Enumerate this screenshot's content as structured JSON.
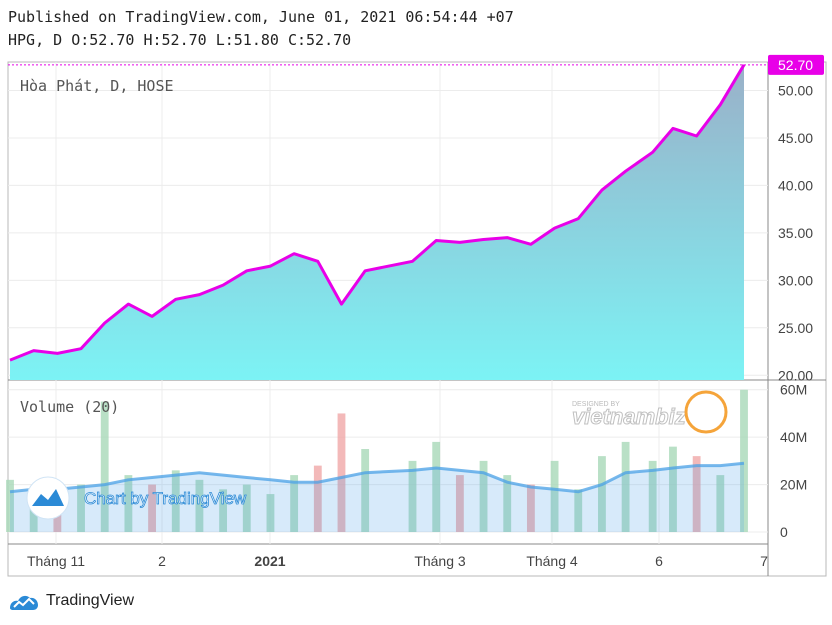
{
  "header": {
    "published": "Published on TradingView.com, June 01, 2021 06:54:44 +07",
    "ohlc": "HPG, D O:52.70 H:52.70 L:51.80 C:52.70"
  },
  "price_pane": {
    "symbol_label": "Hòa Phát, D, HOSE",
    "last_price_label": "52.70"
  },
  "volume_pane": {
    "label": "Volume (20)"
  },
  "branding": {
    "chart_by": "Chart by TradingView",
    "footer": "TradingView",
    "watermark": "vietnambiz",
    "watermark_small": "DESIGNED BY"
  },
  "colors": {
    "price_line": "#e800e8",
    "area_top": "#9ab0c8",
    "area_bottom": "#7cf3f5",
    "vol_up": "#a8d8b8",
    "vol_down": "#f0a8a8",
    "vol_ma": "#4aa0e6",
    "last_price_bg": "#e800e8"
  },
  "chart_data": [
    {
      "type": "area",
      "title": "Hòa Phát, D, HOSE",
      "x_ticks": [
        "Tháng 11",
        "2",
        "2021",
        "Tháng 3",
        "Tháng 4",
        "6",
        "7"
      ],
      "y_ticks": [
        "20.00",
        "25.00",
        "30.00",
        "35.00",
        "40.00",
        "45.00",
        "50.00"
      ],
      "ylim": [
        19.5,
        53.0
      ],
      "x": [
        "2020-10-26",
        "2020-11-02",
        "2020-11-09",
        "2020-11-16",
        "2020-11-23",
        "2020-11-30",
        "2020-12-07",
        "2020-12-14",
        "2020-12-21",
        "2020-12-28",
        "2021-01-04",
        "2021-01-11",
        "2021-01-18",
        "2021-01-25",
        "2021-02-01",
        "2021-02-08",
        "2021-02-22",
        "2021-03-01",
        "2021-03-08",
        "2021-03-15",
        "2021-03-22",
        "2021-03-29",
        "2021-04-05",
        "2021-04-12",
        "2021-04-19",
        "2021-04-26",
        "2021-05-04",
        "2021-05-10",
        "2021-05-17",
        "2021-05-24",
        "2021-05-31"
      ],
      "series": [
        {
          "values": [
            21.6,
            22.6,
            22.3,
            22.8,
            25.5,
            27.5,
            26.2,
            28.0,
            28.5,
            29.5,
            31.0,
            31.5,
            32.8,
            32.0,
            27.5,
            31.0,
            32.0,
            34.2,
            34.0,
            34.3,
            34.5,
            33.8,
            35.5,
            36.5,
            39.5,
            41.5,
            43.5,
            46.0,
            45.2,
            48.5,
            52.7
          ]
        }
      ],
      "last_price": 52.7,
      "grid": true
    },
    {
      "type": "bar",
      "title": "Volume (20)",
      "y_ticks": [
        "0",
        "20M",
        "40M",
        "60M"
      ],
      "ylim": [
        0,
        62
      ],
      "x": [
        "2020-10-26",
        "2020-11-02",
        "2020-11-09",
        "2020-11-16",
        "2020-11-23",
        "2020-11-30",
        "2020-12-07",
        "2020-12-14",
        "2020-12-21",
        "2020-12-28",
        "2021-01-04",
        "2021-01-11",
        "2021-01-18",
        "2021-01-25",
        "2021-02-01",
        "2021-02-08",
        "2021-02-22",
        "2021-03-01",
        "2021-03-08",
        "2021-03-15",
        "2021-03-22",
        "2021-03-29",
        "2021-04-05",
        "2021-04-12",
        "2021-04-19",
        "2021-04-26",
        "2021-05-04",
        "2021-05-10",
        "2021-05-17",
        "2021-05-24",
        "2021-05-31"
      ],
      "series": [
        {
          "name": "Volume",
          "values": [
            22,
            18,
            16,
            20,
            55,
            24,
            20,
            26,
            22,
            18,
            20,
            16,
            24,
            28,
            50,
            35,
            30,
            38,
            24,
            30,
            24,
            20,
            30,
            18,
            32,
            38,
            30,
            36,
            32,
            24,
            60
          ]
        },
        {
          "name": "MA 20",
          "values": [
            17,
            18,
            18,
            19,
            20,
            22,
            23,
            24,
            25,
            24,
            23,
            22,
            21,
            21,
            23,
            25,
            26,
            27,
            26,
            25,
            21,
            19,
            18,
            17,
            20,
            25,
            26,
            27,
            28,
            28,
            29
          ]
        }
      ],
      "grid": true
    }
  ]
}
